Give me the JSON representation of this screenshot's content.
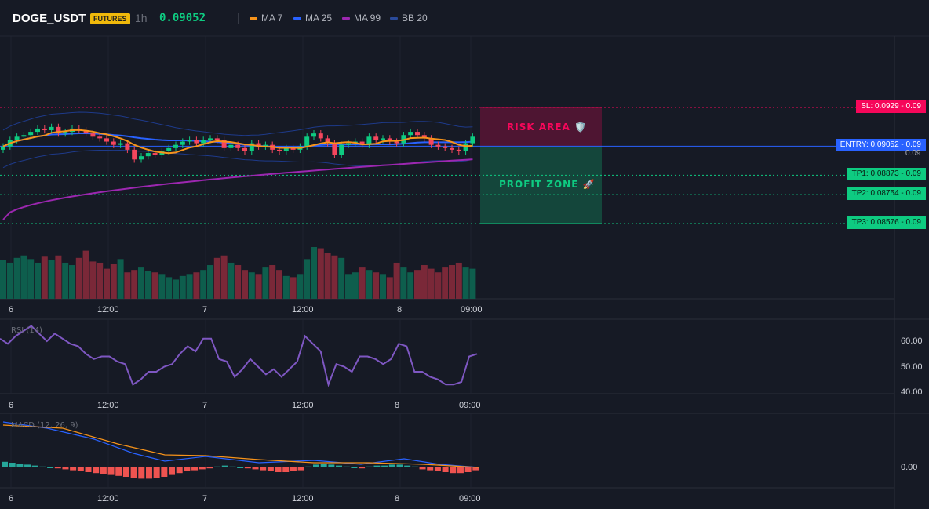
{
  "header": {
    "symbol": "DOGE_USDT",
    "badge": "FUTURES",
    "timeframe": "1h",
    "price": "0.09052",
    "legend": [
      {
        "label": "MA 7",
        "color": "#f7931a"
      },
      {
        "label": "MA 25",
        "color": "#2962ff"
      },
      {
        "label": "MA 99",
        "color": "#9c27b0"
      },
      {
        "label": "BB 20",
        "color": "#1e3a8a"
      }
    ]
  },
  "levels": {
    "sl": {
      "text": "SL: 0.0929 - 0.09",
      "color": "#f6075a"
    },
    "entry": {
      "text": "ENTRY: 0.09052 - 0.09",
      "color": "#2962ff"
    },
    "tp1": {
      "text": "TP1: 0.08873 - 0.09",
      "color": "#0ecb81"
    },
    "tp2": {
      "text": "TP2: 0.08754 - 0.09",
      "color": "#0ecb81"
    },
    "tp3": {
      "text": "TP3: 0.08576 - 0.09",
      "color": "#0ecb81"
    },
    "last_price_axis": "0.09"
  },
  "zones": {
    "risk": "RISK AREA 🛡️",
    "profit": "PROFIT ZONE 🚀"
  },
  "time_axis": [
    "6",
    "12:00",
    "7",
    "12:00",
    "8",
    "09:00"
  ],
  "rsi": {
    "title": "RSI (14)",
    "ticks": [
      "60.00",
      "50.00",
      "40.00"
    ]
  },
  "macd": {
    "title": "MACD (12, 26, 9)",
    "ticks": [
      "0.00"
    ]
  },
  "chart_data": [
    {
      "type": "candlestick",
      "title": "DOGE_USDT 1h",
      "price_axis_labels": [
        "0.09"
      ],
      "x_ticks": [
        "6",
        "12:00",
        "7",
        "12:00",
        "8",
        "09:00"
      ],
      "close": [
        0.0905,
        0.0909,
        0.0911,
        0.0912,
        0.0914,
        0.0916,
        0.0915,
        0.0917,
        0.0913,
        0.0914,
        0.0916,
        0.0915,
        0.0913,
        0.0911,
        0.091,
        0.0908,
        0.0906,
        0.0907,
        0.0903,
        0.0897,
        0.0899,
        0.0901,
        0.09,
        0.0902,
        0.0904,
        0.0906,
        0.0908,
        0.0909,
        0.0907,
        0.0909,
        0.091,
        0.0909,
        0.0904,
        0.0906,
        0.0904,
        0.0902,
        0.0907,
        0.0905,
        0.0906,
        0.0903,
        0.0902,
        0.0904,
        0.0903,
        0.0905,
        0.0911,
        0.0913,
        0.091,
        0.0907,
        0.09,
        0.0906,
        0.0907,
        0.0908,
        0.0906,
        0.0911,
        0.0909,
        0.091,
        0.0908,
        0.0907,
        0.0912,
        0.0914,
        0.0912,
        0.091,
        0.0906,
        0.0905,
        0.0904,
        0.0903,
        0.0902,
        0.0907,
        0.0911
      ],
      "open": [
        0.0903,
        0.0905,
        0.0909,
        0.0911,
        0.0912,
        0.0914,
        0.0916,
        0.0915,
        0.0917,
        0.0913,
        0.0914,
        0.0916,
        0.0915,
        0.0913,
        0.0911,
        0.091,
        0.0908,
        0.0906,
        0.0907,
        0.0903,
        0.0897,
        0.0899,
        0.0901,
        0.09,
        0.0902,
        0.0904,
        0.0906,
        0.0908,
        0.0909,
        0.0907,
        0.0909,
        0.091,
        0.0909,
        0.0904,
        0.0906,
        0.0904,
        0.0902,
        0.0907,
        0.0905,
        0.0906,
        0.0903,
        0.0902,
        0.0904,
        0.0903,
        0.0905,
        0.0911,
        0.0913,
        0.091,
        0.0907,
        0.09,
        0.0906,
        0.0907,
        0.0908,
        0.0906,
        0.0911,
        0.0909,
        0.091,
        0.0908,
        0.0907,
        0.0912,
        0.0914,
        0.0912,
        0.091,
        0.0906,
        0.0905,
        0.0904,
        0.0903,
        0.0902,
        0.0907
      ],
      "volume": [
        32,
        30,
        34,
        36,
        33,
        30,
        35,
        32,
        36,
        30,
        28,
        34,
        40,
        31,
        30,
        25,
        29,
        33,
        22,
        24,
        26,
        23,
        22,
        20,
        18,
        16,
        19,
        20,
        22,
        24,
        28,
        34,
        36,
        30,
        28,
        24,
        22,
        20,
        26,
        28,
        24,
        19,
        18,
        20,
        33,
        43,
        42,
        38,
        36,
        34,
        20,
        22,
        26,
        24,
        22,
        20,
        18,
        30,
        26,
        22,
        24,
        28,
        25,
        22,
        26,
        28,
        30,
        26,
        25
      ],
      "risk_area": [
        "0.0929",
        "0.09052"
      ],
      "profit_zone": [
        "0.09052",
        "0.08576"
      ],
      "levels": {
        "SL": 0.0929,
        "ENTRY": 0.09052,
        "TP1": 0.08873,
        "TP2": 0.08754,
        "TP3": 0.08576
      }
    },
    {
      "type": "line",
      "title": "RSI (14)",
      "ylim": [
        40,
        62
      ],
      "y_ticks": [
        "60.00",
        "50.00",
        "40.00"
      ],
      "values": [
        61,
        59,
        62,
        64,
        66,
        63,
        60,
        63,
        61,
        59,
        58,
        55,
        53,
        54,
        54,
        52,
        51,
        43,
        45,
        48,
        48,
        50,
        51,
        55,
        58,
        56,
        61,
        61,
        53,
        52,
        46,
        49,
        53,
        50,
        47,
        49,
        46,
        49,
        52,
        62,
        59,
        56,
        43,
        51,
        50,
        48,
        54,
        54,
        53,
        51,
        53,
        59,
        58,
        48,
        48,
        46,
        45,
        43,
        43,
        44,
        54,
        55
      ],
      "x_ticks": [
        "6",
        "12:00",
        "7",
        "12:00",
        "8",
        "09:00"
      ]
    },
    {
      "type": "bar",
      "title": "MACD (12, 26, 9)",
      "y_ticks": [
        "0.00"
      ],
      "histogram": [
        0.6,
        0.5,
        0.4,
        0.3,
        0.2,
        0.1,
        0.0,
        -0.1,
        -0.2,
        -0.3,
        -0.4,
        -0.5,
        -0.6,
        -0.7,
        -0.8,
        -0.9,
        -1.0,
        -1.1,
        -1.2,
        -1.2,
        -1.1,
        -1.0,
        -0.8,
        -0.6,
        -0.4,
        -0.3,
        -0.2,
        -0.1,
        0.1,
        0.2,
        0.1,
        0.0,
        -0.1,
        -0.2,
        -0.3,
        -0.4,
        -0.5,
        -0.5,
        -0.4,
        -0.3,
        0.1,
        0.3,
        0.4,
        0.3,
        0.2,
        0.1,
        0.0,
        -0.1,
        0.1,
        0.2,
        0.2,
        0.3,
        0.3,
        0.2,
        0.1,
        -0.2,
        -0.3,
        -0.4,
        -0.5,
        -0.6,
        -0.6,
        -0.5,
        -0.3
      ],
      "x_ticks": [
        "6",
        "12:00",
        "7",
        "12:00",
        "8",
        "09:00"
      ]
    }
  ]
}
